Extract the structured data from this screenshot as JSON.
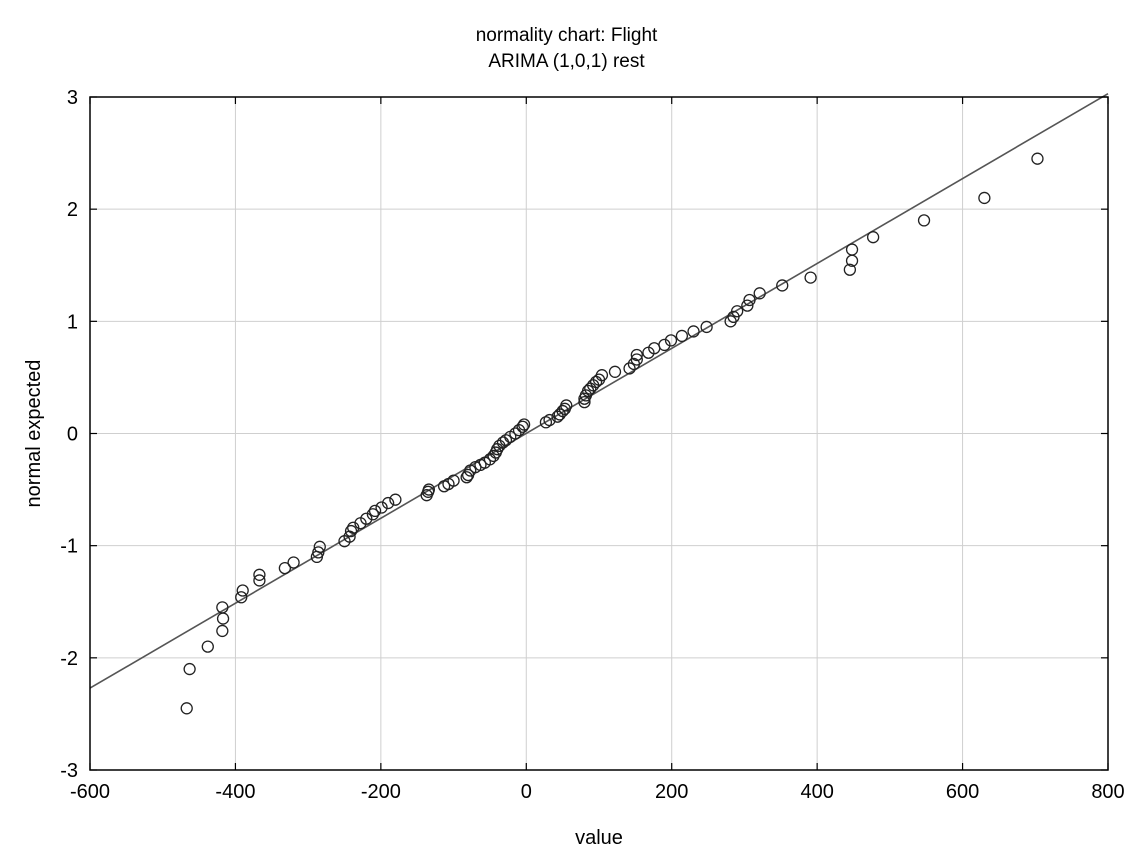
{
  "chart_data": {
    "type": "scatter",
    "title": "normality chart: Flight",
    "subtitle": "ARIMA (1,0,1) rest",
    "xlabel": "value",
    "ylabel": "normal expected",
    "xlim": [
      -600,
      800
    ],
    "ylim": [
      -3,
      3
    ],
    "x_ticks": [
      "-600",
      "-400",
      "-200",
      "0",
      "200",
      "400",
      "600",
      "800"
    ],
    "y_ticks": [
      "3",
      "2",
      "1",
      "0",
      "-1",
      "-2",
      "-3"
    ],
    "grid": true,
    "reference_line": {
      "x": [
        -600,
        800
      ],
      "y": [
        -2.27,
        3.03
      ]
    },
    "points": [
      [
        -467,
        -2.45
      ],
      [
        -463,
        -2.1
      ],
      [
        -438,
        -1.9
      ],
      [
        -418,
        -1.76
      ],
      [
        -417,
        -1.65
      ],
      [
        -418,
        -1.55
      ],
      [
        -392,
        -1.46
      ],
      [
        -390,
        -1.4
      ],
      [
        -367,
        -1.31
      ],
      [
        -367,
        -1.26
      ],
      [
        -332,
        -1.2
      ],
      [
        -320,
        -1.15
      ],
      [
        -288,
        -1.1
      ],
      [
        -286,
        -1.06
      ],
      [
        -284,
        -1.01
      ],
      [
        -250,
        -0.96
      ],
      [
        -243,
        -0.92
      ],
      [
        -241,
        -0.87
      ],
      [
        -238,
        -0.84
      ],
      [
        -228,
        -0.8
      ],
      [
        -220,
        -0.76
      ],
      [
        -211,
        -0.72
      ],
      [
        -208,
        -0.69
      ],
      [
        -199,
        -0.66
      ],
      [
        -190,
        -0.62
      ],
      [
        -180,
        -0.59
      ],
      [
        -137,
        -0.55
      ],
      [
        -135,
        -0.52
      ],
      [
        -134,
        -0.5
      ],
      [
        -113,
        -0.47
      ],
      [
        -107,
        -0.45
      ],
      [
        -100,
        -0.42
      ],
      [
        -82,
        -0.39
      ],
      [
        -80,
        -0.37
      ],
      [
        -77,
        -0.33
      ],
      [
        -70,
        -0.3
      ],
      [
        -63,
        -0.28
      ],
      [
        -57,
        -0.26
      ],
      [
        -50,
        -0.23
      ],
      [
        -45,
        -0.2
      ],
      [
        -42,
        -0.17
      ],
      [
        -40,
        -0.14
      ],
      [
        -37,
        -0.11
      ],
      [
        -32,
        -0.08
      ],
      [
        -28,
        -0.06
      ],
      [
        -22,
        -0.03
      ],
      [
        -15,
        0.0
      ],
      [
        -10,
        0.03
      ],
      [
        -5,
        0.06
      ],
      [
        -3,
        0.08
      ],
      [
        27,
        0.1
      ],
      [
        32,
        0.12
      ],
      [
        43,
        0.15
      ],
      [
        46,
        0.17
      ],
      [
        50,
        0.2
      ],
      [
        53,
        0.22
      ],
      [
        55,
        0.25
      ],
      [
        80,
        0.28
      ],
      [
        80,
        0.31
      ],
      [
        82,
        0.34
      ],
      [
        85,
        0.38
      ],
      [
        88,
        0.4
      ],
      [
        92,
        0.43
      ],
      [
        96,
        0.46
      ],
      [
        100,
        0.48
      ],
      [
        104,
        0.52
      ],
      [
        122,
        0.55
      ],
      [
        142,
        0.58
      ],
      [
        148,
        0.62
      ],
      [
        152,
        0.66
      ],
      [
        152,
        0.7
      ],
      [
        168,
        0.72
      ],
      [
        176,
        0.76
      ],
      [
        190,
        0.79
      ],
      [
        199,
        0.83
      ],
      [
        214,
        0.87
      ],
      [
        230,
        0.91
      ],
      [
        248,
        0.95
      ],
      [
        281,
        1.0
      ],
      [
        285,
        1.04
      ],
      [
        290,
        1.09
      ],
      [
        304,
        1.14
      ],
      [
        307,
        1.19
      ],
      [
        321,
        1.25
      ],
      [
        352,
        1.32
      ],
      [
        391,
        1.39
      ],
      [
        445,
        1.46
      ],
      [
        448,
        1.54
      ],
      [
        448,
        1.64
      ],
      [
        477,
        1.75
      ],
      [
        547,
        1.9
      ],
      [
        630,
        2.1
      ],
      [
        703,
        2.45
      ]
    ]
  }
}
